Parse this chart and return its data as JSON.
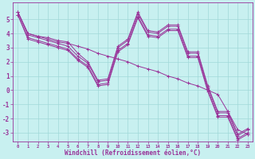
{
  "xlabel": "Windchill (Refroidissement éolien,°C)",
  "bg_color": "#c8f0f0",
  "grid_color": "#a0d8d8",
  "line_color": "#993399",
  "xlim_min": -0.5,
  "xlim_max": 23.5,
  "ylim_min": -3.6,
  "ylim_max": 6.2,
  "yticks": [
    -3,
    -2,
    -1,
    0,
    1,
    2,
    3,
    4,
    5
  ],
  "xticks": [
    0,
    1,
    2,
    3,
    4,
    5,
    6,
    7,
    8,
    9,
    10,
    11,
    12,
    13,
    14,
    15,
    16,
    17,
    18,
    19,
    20,
    21,
    22,
    23
  ],
  "series": [
    [
      5.5,
      4.0,
      3.8,
      3.7,
      3.5,
      3.4,
      2.6,
      2.0,
      0.7,
      0.8,
      3.1,
      3.6,
      5.5,
      4.2,
      4.1,
      4.6,
      4.6,
      2.7,
      2.7,
      0.3,
      -1.5,
      -1.5,
      -3.1,
      -2.7
    ],
    [
      5.5,
      3.9,
      3.7,
      3.5,
      3.3,
      3.1,
      2.4,
      1.9,
      0.6,
      0.7,
      3.0,
      3.5,
      5.4,
      4.1,
      4.0,
      4.5,
      4.5,
      2.6,
      2.6,
      0.2,
      -1.6,
      -1.6,
      -3.2,
      -2.8
    ],
    [
      5.3,
      3.7,
      3.5,
      3.3,
      3.1,
      2.9,
      2.2,
      1.7,
      0.4,
      0.5,
      2.8,
      3.3,
      5.2,
      3.9,
      3.8,
      4.3,
      4.3,
      2.4,
      2.4,
      0.0,
      -1.8,
      -1.8,
      -3.4,
      -3.0
    ],
    [
      5.3,
      3.6,
      3.4,
      3.2,
      3.0,
      2.8,
      2.1,
      1.6,
      0.3,
      0.4,
      2.7,
      3.2,
      5.1,
      3.8,
      3.7,
      4.2,
      4.2,
      2.3,
      2.3,
      -0.1,
      -1.9,
      -1.9,
      -3.5,
      -3.1
    ],
    [
      5.5,
      4.0,
      3.8,
      3.6,
      3.4,
      3.3,
      3.1,
      2.9,
      2.6,
      2.4,
      2.2,
      2.0,
      1.7,
      1.5,
      1.3,
      1.0,
      0.8,
      0.5,
      0.3,
      0.0,
      -0.3,
      -1.5,
      -2.8,
      -3.1
    ]
  ]
}
